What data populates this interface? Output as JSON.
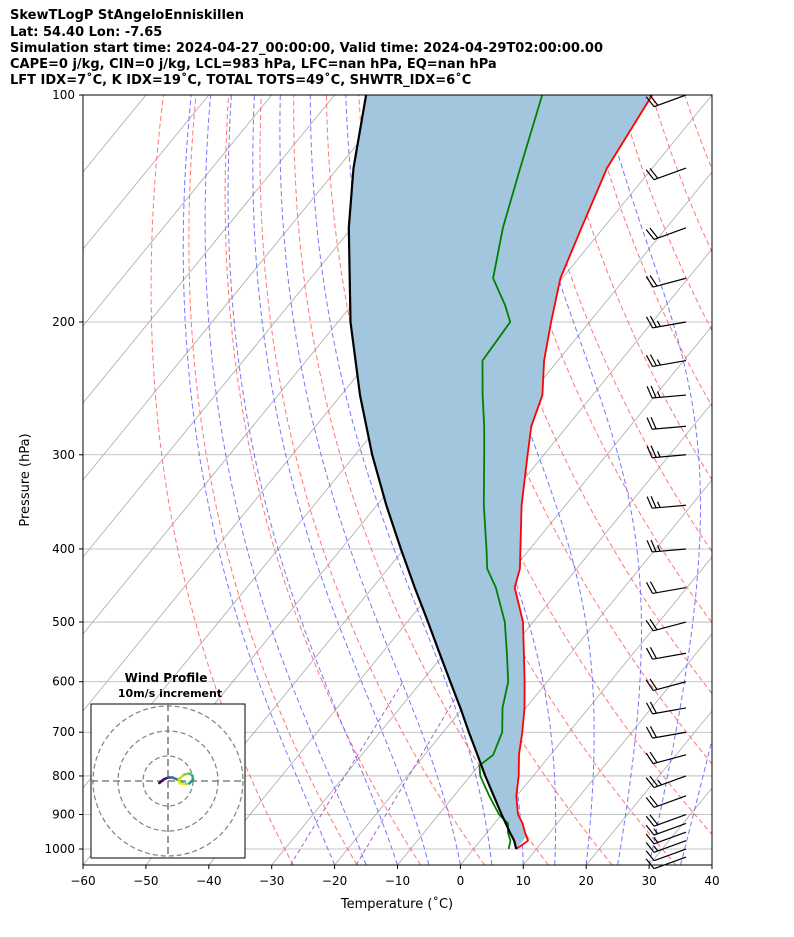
{
  "header": {
    "line1": "SkewTLogP StAngeloEnniskillen",
    "line2": "Lat: 54.40   Lon: -7.65",
    "line3": "Simulation start time: 2024-04-27_00:00:00, Valid time: 2024-04-29T02:00:00.00",
    "line4": "CAPE=0 j/kg, CIN=0 j/kg, LCL=983 hPa, LFC=nan hPa, EQ=nan hPa",
    "line5": "LFT IDX=7˚C, K IDX=19˚C, TOTAL TOTS=49˚C, SHWTR_IDX=6˚C"
  },
  "chart_data": {
    "type": "line",
    "xlabel": "Temperature (˚C)",
    "ylabel": "Pressure (hPa)",
    "xlim": [
      -60,
      40
    ],
    "ylim": [
      1050,
      100
    ],
    "y_scale": "log",
    "x_ticks": [
      -60,
      -50,
      -40,
      -30,
      -20,
      -10,
      0,
      10,
      20,
      30,
      40
    ],
    "y_ticks": [
      100,
      200,
      300,
      400,
      500,
      600,
      700,
      800,
      900,
      1000
    ],
    "grid": true,
    "colors": {
      "temperature": "#ff0000",
      "dewpoint": "#008000",
      "parcel": "#000000",
      "shading": "#a3c6df",
      "isotherms": "#a9a9a9",
      "dry_adiabats": "#ff6666",
      "moist_adiabats": "#6666ff",
      "mixing_ratio": "#9932cc"
    },
    "series": [
      {
        "role": "temperature",
        "pressure": [
          1000,
          975,
          950,
          925,
          900,
          850,
          800,
          750,
          700,
          650,
          600,
          550,
          500,
          450,
          425,
          400,
          350,
          300,
          275,
          250,
          225,
          200,
          175,
          150,
          125,
          100
        ],
        "values": [
          6.8,
          7.6,
          6.0,
          4.5,
          2.6,
          -0.1,
          -2.3,
          -5.0,
          -7.4,
          -10.2,
          -13.6,
          -17.4,
          -21.6,
          -27.4,
          -29.0,
          -31.5,
          -37.0,
          -42.6,
          -45.7,
          -48.0,
          -52.2,
          -56.1,
          -60.3,
          -63.5,
          -67.2,
          -69.5
        ]
      },
      {
        "role": "dewpoint",
        "pressure": [
          1000,
          975,
          950,
          925,
          900,
          850,
          800,
          775,
          750,
          700,
          650,
          600,
          550,
          500,
          450,
          425,
          400,
          350,
          300,
          275,
          250,
          225,
          200,
          190,
          175,
          150,
          125,
          100
        ],
        "values": [
          5.6,
          4.8,
          3.3,
          2.2,
          -0.4,
          -4.4,
          -8.4,
          -9.9,
          -9.1,
          -10.6,
          -13.7,
          -16.2,
          -20.1,
          -24.5,
          -30.4,
          -34.2,
          -36.9,
          -43.0,
          -49.5,
          -53.2,
          -57.5,
          -62.0,
          -62.6,
          -65.6,
          -71.0,
          -76.0,
          -81.0,
          -87.0
        ]
      },
      {
        "role": "parcel",
        "pressure": [
          1000,
          975,
          950,
          900,
          850,
          800,
          750,
          700,
          650,
          600,
          550,
          500,
          450,
          400,
          350,
          300,
          250,
          200,
          150,
          125,
          100
        ],
        "values": [
          6.8,
          5.4,
          3.6,
          0.0,
          -3.7,
          -7.6,
          -11.6,
          -15.9,
          -20.4,
          -25.4,
          -30.8,
          -36.7,
          -43.3,
          -50.5,
          -58.5,
          -67.3,
          -77.0,
          -88.0,
          -100.5,
          -107.5,
          -115.0
        ]
      }
    ],
    "wind_barbs": {
      "pressure": [
        1025,
        1000,
        975,
        950,
        925,
        900,
        850,
        800,
        750,
        700,
        650,
        600,
        550,
        500,
        450,
        400,
        350,
        300,
        275,
        250,
        225,
        200,
        175,
        150,
        125,
        100
      ],
      "speed_kt": [
        12,
        12,
        14,
        15,
        17,
        19,
        21,
        23,
        20,
        21,
        20,
        19,
        21,
        22,
        21,
        23,
        24,
        23,
        22,
        23,
        25,
        25,
        21,
        21,
        20,
        19
      ],
      "direction_deg": [
        250,
        250,
        250,
        250,
        250,
        250,
        250,
        250,
        255,
        260,
        260,
        255,
        260,
        255,
        260,
        265,
        265,
        265,
        265,
        265,
        260,
        260,
        255,
        250,
        250,
        250
      ]
    },
    "hodograph": {
      "title": "Wind Profile",
      "subtitle": "10m/s increment",
      "rings_ms": [
        10,
        20,
        30
      ],
      "u_ms": [
        -3.5,
        -1.6,
        0.2,
        1.8,
        3.7,
        5.4,
        6.8,
        7.6,
        6.4,
        4.5,
        4.4,
        6.5,
        8.5,
        9.8,
        10.0,
        8.5
      ],
      "v_ms": [
        -0.8,
        0.7,
        1.4,
        1.4,
        0.6,
        -0.5,
        -1.0,
        -1.1,
        -1.3,
        -0.9,
        0.8,
        2.6,
        3.0,
        2.1,
        0.5,
        -1.0
      ]
    }
  }
}
